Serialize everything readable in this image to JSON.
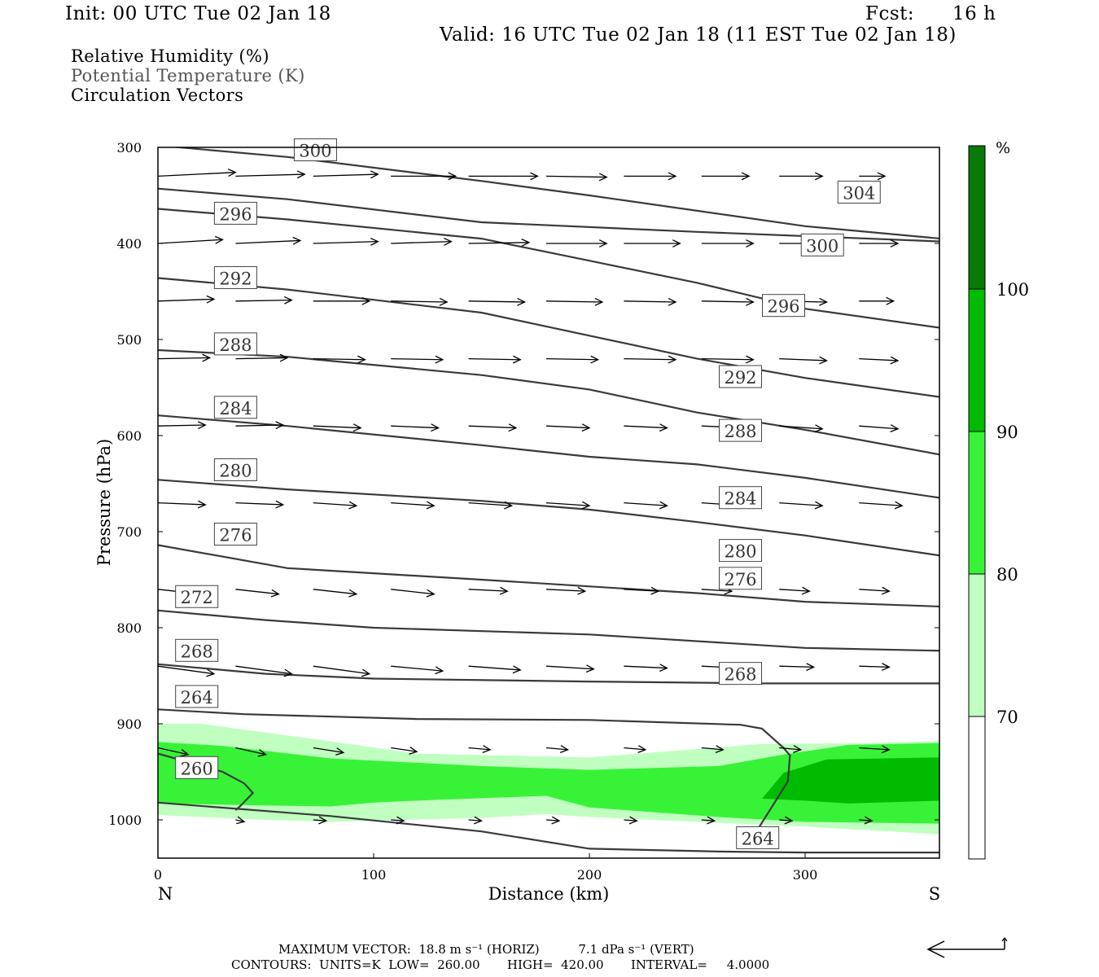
{
  "header": {
    "init": "Init: 00 UTC Tue 02 Jan 18",
    "fcst_label": "Fcst:",
    "fcst_value": "16 h",
    "valid": "Valid: 16 UTC Tue 02 Jan 18 (11 EST Tue 02 Jan 18)"
  },
  "legend_lines": {
    "rh": "Relative Humidity (%)",
    "theta": "Potential Temperature (K)",
    "vectors": "Circulation Vectors"
  },
  "footer": {
    "max_vector": "MAXIMUM VECTOR:  18.8 m s⁻¹ (HORIZ)          7.1 dPa s⁻¹ (VERT)",
    "contours": "CONTOURS:  UNITS=K  LOW=  260.00       HIGH=  420.00       INTERVAL=     4.0000"
  },
  "colors": {
    "rh_70_80": "#c0ffc0",
    "rh_80_90": "#38f238",
    "rh_90_100": "#00bb00",
    "rh_100": "#087a08",
    "contour": "#3a3a3a",
    "vector": "#000000"
  },
  "chart_data": {
    "type": "cross-section",
    "xlabel": "Distance (km)",
    "ylabel": "Pressure (hPa)",
    "xlim": [
      0,
      363
    ],
    "ylim": [
      300,
      1040
    ],
    "y_inverted": true,
    "x_ticks": [
      0,
      100,
      200,
      300
    ],
    "y_ticks": [
      300,
      400,
      500,
      600,
      700,
      800,
      900,
      1000
    ],
    "x_end_labels": {
      "left": "N",
      "right": "S"
    },
    "colorbar": {
      "unit_label": "%",
      "levels": [
        70,
        80,
        90,
        100
      ],
      "level_labels": [
        "70",
        "80",
        "90",
        "100"
      ]
    },
    "theta_contours": [
      {
        "label": "260",
        "label_at": [
          18,
          946
        ],
        "points": [
          [
            0,
            931
          ],
          [
            30,
            950
          ],
          [
            40,
            962
          ],
          [
            44,
            972
          ],
          [
            38,
            986
          ],
          [
            36,
            990
          ]
        ]
      },
      {
        "label": "264",
        "label_at": [
          18,
          872
        ],
        "points": [
          [
            0,
            885
          ],
          [
            40,
            890
          ],
          [
            120,
            895
          ],
          [
            200,
            896
          ],
          [
            270,
            901
          ],
          [
            280,
            905
          ],
          [
            290,
            925
          ],
          [
            293,
            933
          ],
          [
            292,
            960
          ],
          [
            285,
            985
          ],
          [
            278,
            1010
          ]
        ]
      },
      {
        "label": "264",
        "label_at": [
          278,
          1019
        ],
        "points": [
          [
            0,
            982
          ],
          [
            80,
            996
          ],
          [
            150,
            1012
          ],
          [
            200,
            1030
          ],
          [
            260,
            1033
          ],
          [
            300,
            1034
          ],
          [
            363,
            1034
          ]
        ]
      },
      {
        "label": "268",
        "label_at": [
          18,
          824
        ],
        "points": [
          [
            0,
            838
          ],
          [
            50,
            848
          ],
          [
            100,
            853
          ],
          [
            200,
            856
          ],
          [
            280,
            858
          ],
          [
            363,
            858
          ]
        ]
      },
      {
        "label": "268",
        "label_at": [
          270,
          848
        ]
      },
      {
        "label": "272",
        "label_at": [
          18,
          768
        ],
        "points": [
          [
            0,
            782
          ],
          [
            50,
            792
          ],
          [
            100,
            800
          ],
          [
            200,
            807
          ],
          [
            300,
            821
          ],
          [
            363,
            824
          ]
        ]
      },
      {
        "label": "276",
        "label_at": [
          36,
          703
        ],
        "points": [
          [
            0,
            714
          ],
          [
            60,
            738
          ],
          [
            150,
            750
          ],
          [
            250,
            764
          ],
          [
            300,
            773
          ],
          [
            363,
            778
          ]
        ]
      },
      {
        "label": "276",
        "label_at": [
          270,
          749
        ]
      },
      {
        "label": "280",
        "label_at": [
          36,
          636
        ],
        "points": [
          [
            0,
            646
          ],
          [
            60,
            656
          ],
          [
            150,
            668
          ],
          [
            200,
            677
          ],
          [
            250,
            690
          ],
          [
            300,
            704
          ],
          [
            363,
            725
          ]
        ]
      },
      {
        "label": "280",
        "label_at": [
          270,
          720
        ]
      },
      {
        "label": "284",
        "label_at": [
          36,
          571
        ],
        "points": [
          [
            0,
            579
          ],
          [
            60,
            590
          ],
          [
            150,
            610
          ],
          [
            200,
            622
          ],
          [
            250,
            630
          ],
          [
            300,
            644
          ],
          [
            363,
            665
          ]
        ]
      },
      {
        "label": "284",
        "label_at": [
          270,
          665
        ]
      },
      {
        "label": "288",
        "label_at": [
          36,
          505
        ],
        "points": [
          [
            0,
            511
          ],
          [
            60,
            518
          ],
          [
            150,
            537
          ],
          [
            200,
            552
          ],
          [
            250,
            576
          ],
          [
            300,
            594
          ],
          [
            363,
            620
          ]
        ]
      },
      {
        "label": "288",
        "label_at": [
          270,
          595
        ]
      },
      {
        "label": "292",
        "label_at": [
          36,
          436
        ],
        "points": [
          [
            0,
            436
          ],
          [
            60,
            448
          ],
          [
            150,
            472
          ],
          [
            200,
            496
          ],
          [
            250,
            520
          ],
          [
            300,
            540
          ],
          [
            363,
            560
          ]
        ]
      },
      {
        "label": "292",
        "label_at": [
          270,
          539
        ]
      },
      {
        "label": "296",
        "label_at": [
          36,
          369
        ],
        "points": [
          [
            0,
            364
          ],
          [
            60,
            375
          ],
          [
            150,
            395
          ],
          [
            200,
            418
          ],
          [
            250,
            441
          ],
          [
            300,
            468
          ],
          [
            363,
            488
          ]
        ]
      },
      {
        "label": "296",
        "label_at": [
          290,
          465
        ]
      },
      {
        "label": "300",
        "label_at": [
          73,
          303
        ],
        "points": [
          [
            0,
            298
          ],
          [
            60,
            310
          ],
          [
            150,
            335
          ],
          [
            200,
            350
          ],
          [
            250,
            366
          ],
          [
            300,
            382
          ],
          [
            363,
            395
          ]
        ]
      },
      {
        "label": "300",
        "label_at": [
          308,
          402
        ]
      },
      {
        "label": "304",
        "points": [
          [
            0,
            343
          ],
          [
            60,
            354
          ],
          [
            150,
            378
          ],
          [
            250,
            388
          ],
          [
            363,
            398
          ]
        ]
      },
      {
        "label": "304",
        "label_at": [
          325,
          347
        ]
      }
    ],
    "rh_regions": [
      {
        "level": "70-80",
        "points": [
          [
            0,
            900
          ],
          [
            20,
            900
          ],
          [
            60,
            912
          ],
          [
            120,
            931
          ],
          [
            200,
            935
          ],
          [
            280,
            921
          ],
          [
            330,
            920
          ],
          [
            363,
            918
          ],
          [
            363,
            1015
          ],
          [
            300,
            1007
          ],
          [
            250,
            1002
          ],
          [
            200,
            997
          ],
          [
            180,
            994
          ],
          [
            150,
            998
          ],
          [
            80,
            1002
          ],
          [
            50,
            1000
          ],
          [
            0,
            995
          ]
        ]
      },
      {
        "level": "80-90",
        "points": [
          [
            0,
            919
          ],
          [
            30,
            923
          ],
          [
            80,
            936
          ],
          [
            150,
            944
          ],
          [
            200,
            948
          ],
          [
            260,
            944
          ],
          [
            290,
            932
          ],
          [
            320,
            922
          ],
          [
            363,
            920
          ],
          [
            363,
            1004
          ],
          [
            300,
            1002
          ],
          [
            260,
            997
          ],
          [
            200,
            987
          ],
          [
            180,
            975
          ],
          [
            130,
            979
          ],
          [
            100,
            982
          ],
          [
            80,
            986
          ],
          [
            50,
            985
          ],
          [
            0,
            983
          ]
        ]
      },
      {
        "level": "90-100",
        "points": [
          [
            280,
            978
          ],
          [
            290,
            951
          ],
          [
            310,
            937
          ],
          [
            363,
            935
          ],
          [
            363,
            980
          ],
          [
            320,
            983
          ],
          [
            300,
            980
          ]
        ]
      }
    ],
    "vectors": [
      {
        "p": 330,
        "x": [
          0,
          36,
          72,
          108,
          144,
          180,
          216,
          252,
          288,
          325
        ],
        "dx": [
          36,
          32,
          30,
          30,
          32,
          28,
          24,
          22,
          20,
          12
        ],
        "dy": [
          -4,
          -2,
          -2,
          0,
          0,
          1,
          0,
          0,
          0,
          0
        ]
      },
      {
        "p": 400,
        "x": [
          0,
          36,
          72,
          108,
          144,
          180,
          216,
          252,
          288,
          325
        ],
        "dx": [
          30,
          30,
          30,
          28,
          28,
          28,
          26,
          24,
          22,
          18
        ],
        "dy": [
          -4,
          -3,
          -2,
          -2,
          -1,
          0,
          0,
          0,
          0,
          0
        ]
      },
      {
        "p": 460,
        "x": [
          0,
          36,
          72,
          108,
          144,
          180,
          216,
          252,
          288,
          325
        ],
        "dx": [
          26,
          26,
          26,
          26,
          26,
          26,
          24,
          24,
          22,
          16
        ],
        "dy": [
          -2,
          -1,
          0,
          1,
          1,
          1,
          1,
          1,
          1,
          0
        ]
      },
      {
        "p": 520,
        "x": [
          0,
          36,
          72,
          108,
          144,
          180,
          216,
          252,
          288,
          325
        ],
        "dx": [
          24,
          24,
          24,
          24,
          24,
          24,
          24,
          24,
          22,
          18
        ],
        "dy": [
          -1,
          -1,
          1,
          1,
          1,
          1,
          1,
          1,
          2,
          2
        ]
      },
      {
        "p": 590,
        "x": [
          0,
          36,
          72,
          108,
          144,
          180,
          216,
          252,
          288,
          325
        ],
        "dx": [
          22,
          22,
          22,
          22,
          22,
          20,
          20,
          20,
          20,
          18
        ],
        "dy": [
          -1,
          -1,
          2,
          2,
          2,
          2,
          2,
          2,
          3,
          3
        ]
      },
      {
        "p": 670,
        "x": [
          0,
          36,
          72,
          108,
          144,
          180,
          216,
          252,
          288,
          325
        ],
        "dx": [
          22,
          22,
          20,
          20,
          20,
          20,
          20,
          20,
          20,
          20
        ],
        "dy": [
          2,
          2,
          3,
          3,
          3,
          3,
          3,
          3,
          3,
          3
        ]
      },
      {
        "p": 760,
        "x": [
          0,
          36,
          72,
          108,
          144,
          180,
          216,
          252,
          288,
          325
        ],
        "dx": [
          20,
          20,
          20,
          20,
          18,
          18,
          16,
          14,
          14,
          14
        ],
        "dy": [
          5,
          5,
          5,
          5,
          2,
          2,
          2,
          2,
          2,
          2
        ]
      },
      {
        "p": 840,
        "x": [
          0,
          36,
          72,
          108,
          144,
          180,
          216,
          252,
          288,
          325
        ],
        "dx": [
          26,
          26,
          26,
          24,
          24,
          22,
          20,
          18,
          16,
          14
        ],
        "dy": [
          8,
          8,
          8,
          5,
          4,
          3,
          2,
          2,
          1,
          1
        ]
      },
      {
        "p": 925,
        "x": [
          0,
          36,
          72,
          108,
          144,
          180,
          216,
          252,
          288,
          325
        ],
        "dx": [
          14,
          14,
          14,
          12,
          10,
          10,
          10,
          10,
          10,
          14
        ],
        "dy": [
          7,
          7,
          5,
          4,
          2,
          2,
          2,
          2,
          2,
          2
        ]
      },
      {
        "p": 1000,
        "x": [
          36,
          72,
          108,
          144,
          180,
          216,
          252,
          288,
          325
        ],
        "dx": [
          4,
          6,
          6,
          6,
          6,
          6,
          6,
          6,
          6
        ],
        "dy": [
          2,
          1,
          1,
          1,
          1,
          1,
          1,
          1,
          1
        ]
      }
    ],
    "grid": false,
    "legend_placement": "top-left"
  }
}
